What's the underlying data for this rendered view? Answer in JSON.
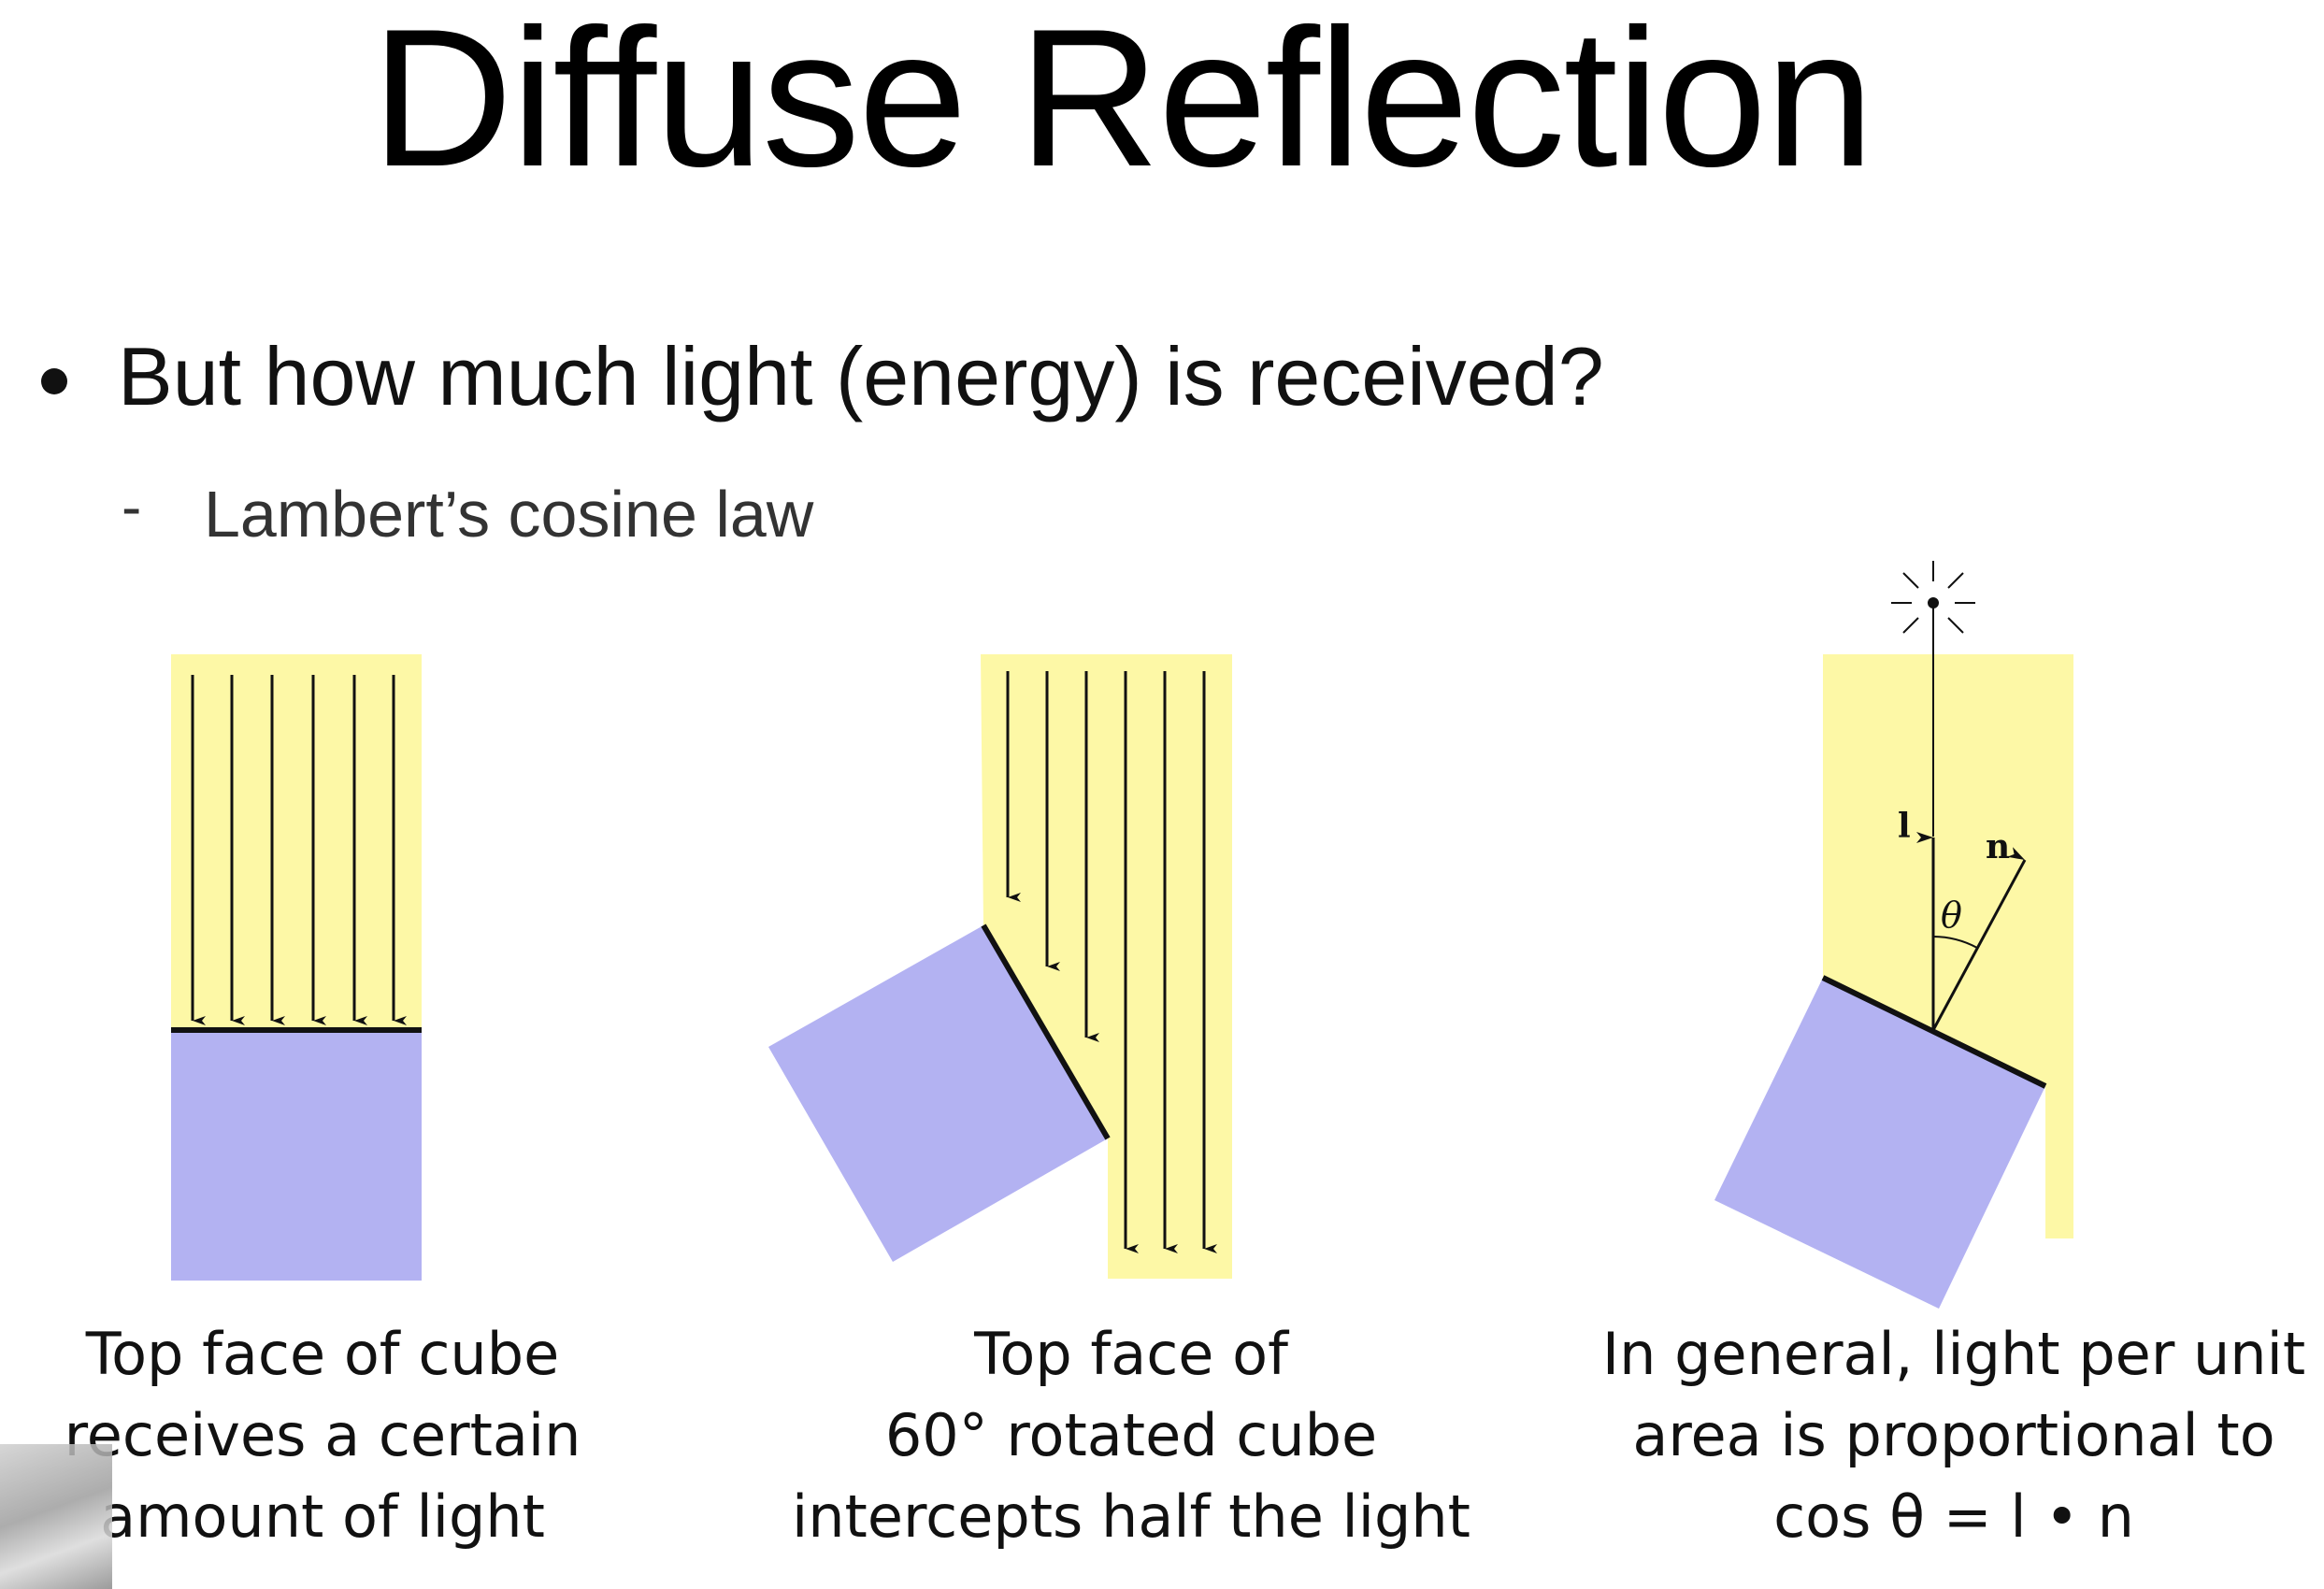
{
  "slide": {
    "title": "Diffuse Reflection",
    "bullet": "But how much light (energy) is received?",
    "sub_dash": "-",
    "sub_bullet": "Lambert’s cosine law"
  },
  "colors": {
    "light_region": "#fdf8a6",
    "cube": "#b3b2f2",
    "ink": "#111111"
  },
  "figures": [
    {
      "caption_lines": [
        "Top face of cube",
        "receives a certain",
        "amount of light"
      ]
    },
    {
      "caption_lines": [
        "Top face of",
        "60° rotated cube",
        "intercepts half the light"
      ]
    },
    {
      "labels": {
        "light": "l",
        "normal": "n",
        "angle": "θ"
      },
      "caption_lines": [
        "In general, light per unit",
        "area is proportional to",
        "cos θ = l • n"
      ]
    }
  ]
}
